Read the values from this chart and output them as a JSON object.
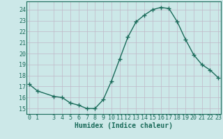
{
  "x": [
    0,
    1,
    3,
    4,
    5,
    6,
    7,
    8,
    9,
    10,
    11,
    12,
    13,
    14,
    15,
    16,
    17,
    18,
    19,
    20,
    21,
    22,
    23
  ],
  "y": [
    17.2,
    16.6,
    16.1,
    16.0,
    15.5,
    15.3,
    15.0,
    15.0,
    15.8,
    17.5,
    19.5,
    21.5,
    22.9,
    23.5,
    24.0,
    24.2,
    24.1,
    22.9,
    21.3,
    19.9,
    19.0,
    18.5,
    17.8
  ],
  "line_color": "#1a6b5a",
  "bg_color": "#cce8e8",
  "grid_color": "#c0b8c8",
  "xlabel": "Humidex (Indice chaleur)",
  "ylim": [
    14.5,
    24.75
  ],
  "xlim": [
    -0.3,
    23.3
  ],
  "yticks": [
    15,
    16,
    17,
    18,
    19,
    20,
    21,
    22,
    23,
    24
  ],
  "xtick_positions": [
    0,
    1,
    3,
    4,
    5,
    6,
    7,
    8,
    9,
    10,
    11,
    12,
    13,
    14,
    15,
    16,
    17,
    18,
    19,
    20,
    21,
    22,
    23
  ],
  "xtick_labels": [
    "0",
    "1",
    "3",
    "4",
    "5",
    "6",
    "7",
    "8",
    "9",
    "10",
    "11",
    "12",
    "13",
    "14",
    "15",
    "16",
    "17",
    "18",
    "19",
    "20",
    "21",
    "22",
    "23"
  ],
  "marker_size": 4,
  "line_width": 1.0,
  "label_fontsize": 7,
  "tick_fontsize": 6
}
